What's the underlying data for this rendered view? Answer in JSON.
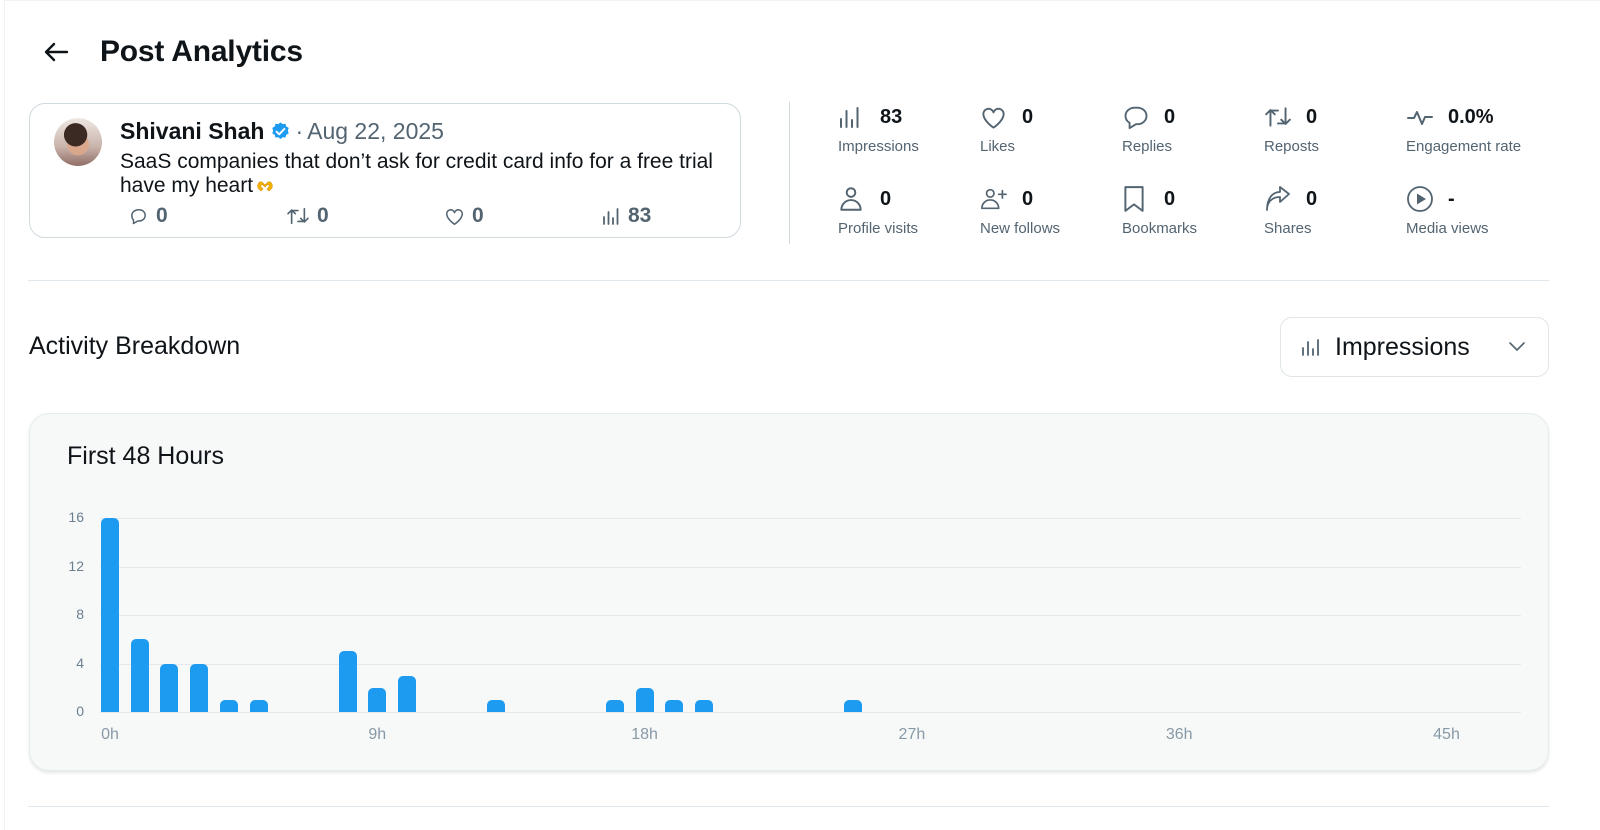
{
  "header": {
    "back_icon": "arrow-left-icon",
    "title": "Post Analytics"
  },
  "post": {
    "author": "Shivani Shah",
    "verified": true,
    "date_separator": "·",
    "date": "Aug 22, 2025",
    "text": "SaaS companies that don’t ask for credit card info for a free trial have my heart",
    "emoji": "heart-hands-emoji",
    "metrics": {
      "replies": "0",
      "reposts": "0",
      "likes": "0",
      "views": "83"
    }
  },
  "stats": [
    {
      "icon": "bar-chart-icon",
      "value": "83",
      "label": "Impressions"
    },
    {
      "icon": "heart-icon",
      "value": "0",
      "label": "Likes"
    },
    {
      "icon": "reply-bubble-icon",
      "value": "0",
      "label": "Replies"
    },
    {
      "icon": "repost-icon",
      "value": "0",
      "label": "Reposts"
    },
    {
      "icon": "pulse-icon",
      "value": "0.0%",
      "label": "Engagement rate"
    },
    {
      "icon": "person-icon",
      "value": "0",
      "label": "Profile visits"
    },
    {
      "icon": "person-add-icon",
      "value": "0",
      "label": "New follows"
    },
    {
      "icon": "bookmark-icon",
      "value": "0",
      "label": "Bookmarks"
    },
    {
      "icon": "share-icon",
      "value": "0",
      "label": "Shares"
    },
    {
      "icon": "play-circle-icon",
      "value": "-",
      "label": "Media views"
    }
  ],
  "activity": {
    "title": "Activity Breakdown",
    "metric_select": {
      "icon": "bar-chart-icon",
      "selected": "Impressions"
    }
  },
  "chart_title": "First 48 Hours",
  "colors": {
    "accent": "#1d9bf0",
    "text_primary": "#0f1419",
    "text_secondary": "#536471",
    "chart_bg": "#f7f9f9"
  },
  "chart_data": {
    "type": "bar",
    "title": "First 48 Hours",
    "metric": "Impressions",
    "xlabel": "",
    "ylabel": "",
    "x_unit": "hour",
    "x": [
      0,
      1,
      2,
      3,
      4,
      5,
      6,
      7,
      8,
      9,
      10,
      11,
      12,
      13,
      14,
      15,
      16,
      17,
      18,
      19,
      20,
      21,
      22,
      23,
      24,
      25,
      26,
      27,
      28,
      29,
      30,
      31,
      32,
      33,
      34,
      35,
      36,
      37,
      38,
      39,
      40,
      41,
      42,
      43,
      44,
      45,
      46,
      47
    ],
    "values": [
      16,
      6,
      4,
      4,
      1,
      1,
      0,
      0,
      5,
      2,
      3,
      0,
      0,
      1,
      0,
      0,
      0,
      1,
      2,
      1,
      1,
      0,
      0,
      0,
      0,
      1,
      0,
      0,
      0,
      0,
      0,
      0,
      0,
      0,
      0,
      0,
      0,
      0,
      0,
      0,
      0,
      0,
      0,
      0,
      0,
      0,
      0,
      0
    ],
    "x_ticks": [
      "0h",
      "9h",
      "18h",
      "27h",
      "36h",
      "45h"
    ],
    "x_tick_positions": [
      0,
      9,
      18,
      27,
      36,
      45
    ],
    "y_ticks": [
      "0",
      "4",
      "8",
      "12",
      "16"
    ],
    "ylim": [
      0,
      16
    ],
    "grid": true,
    "legend": null,
    "color": "#1d9bf0"
  }
}
